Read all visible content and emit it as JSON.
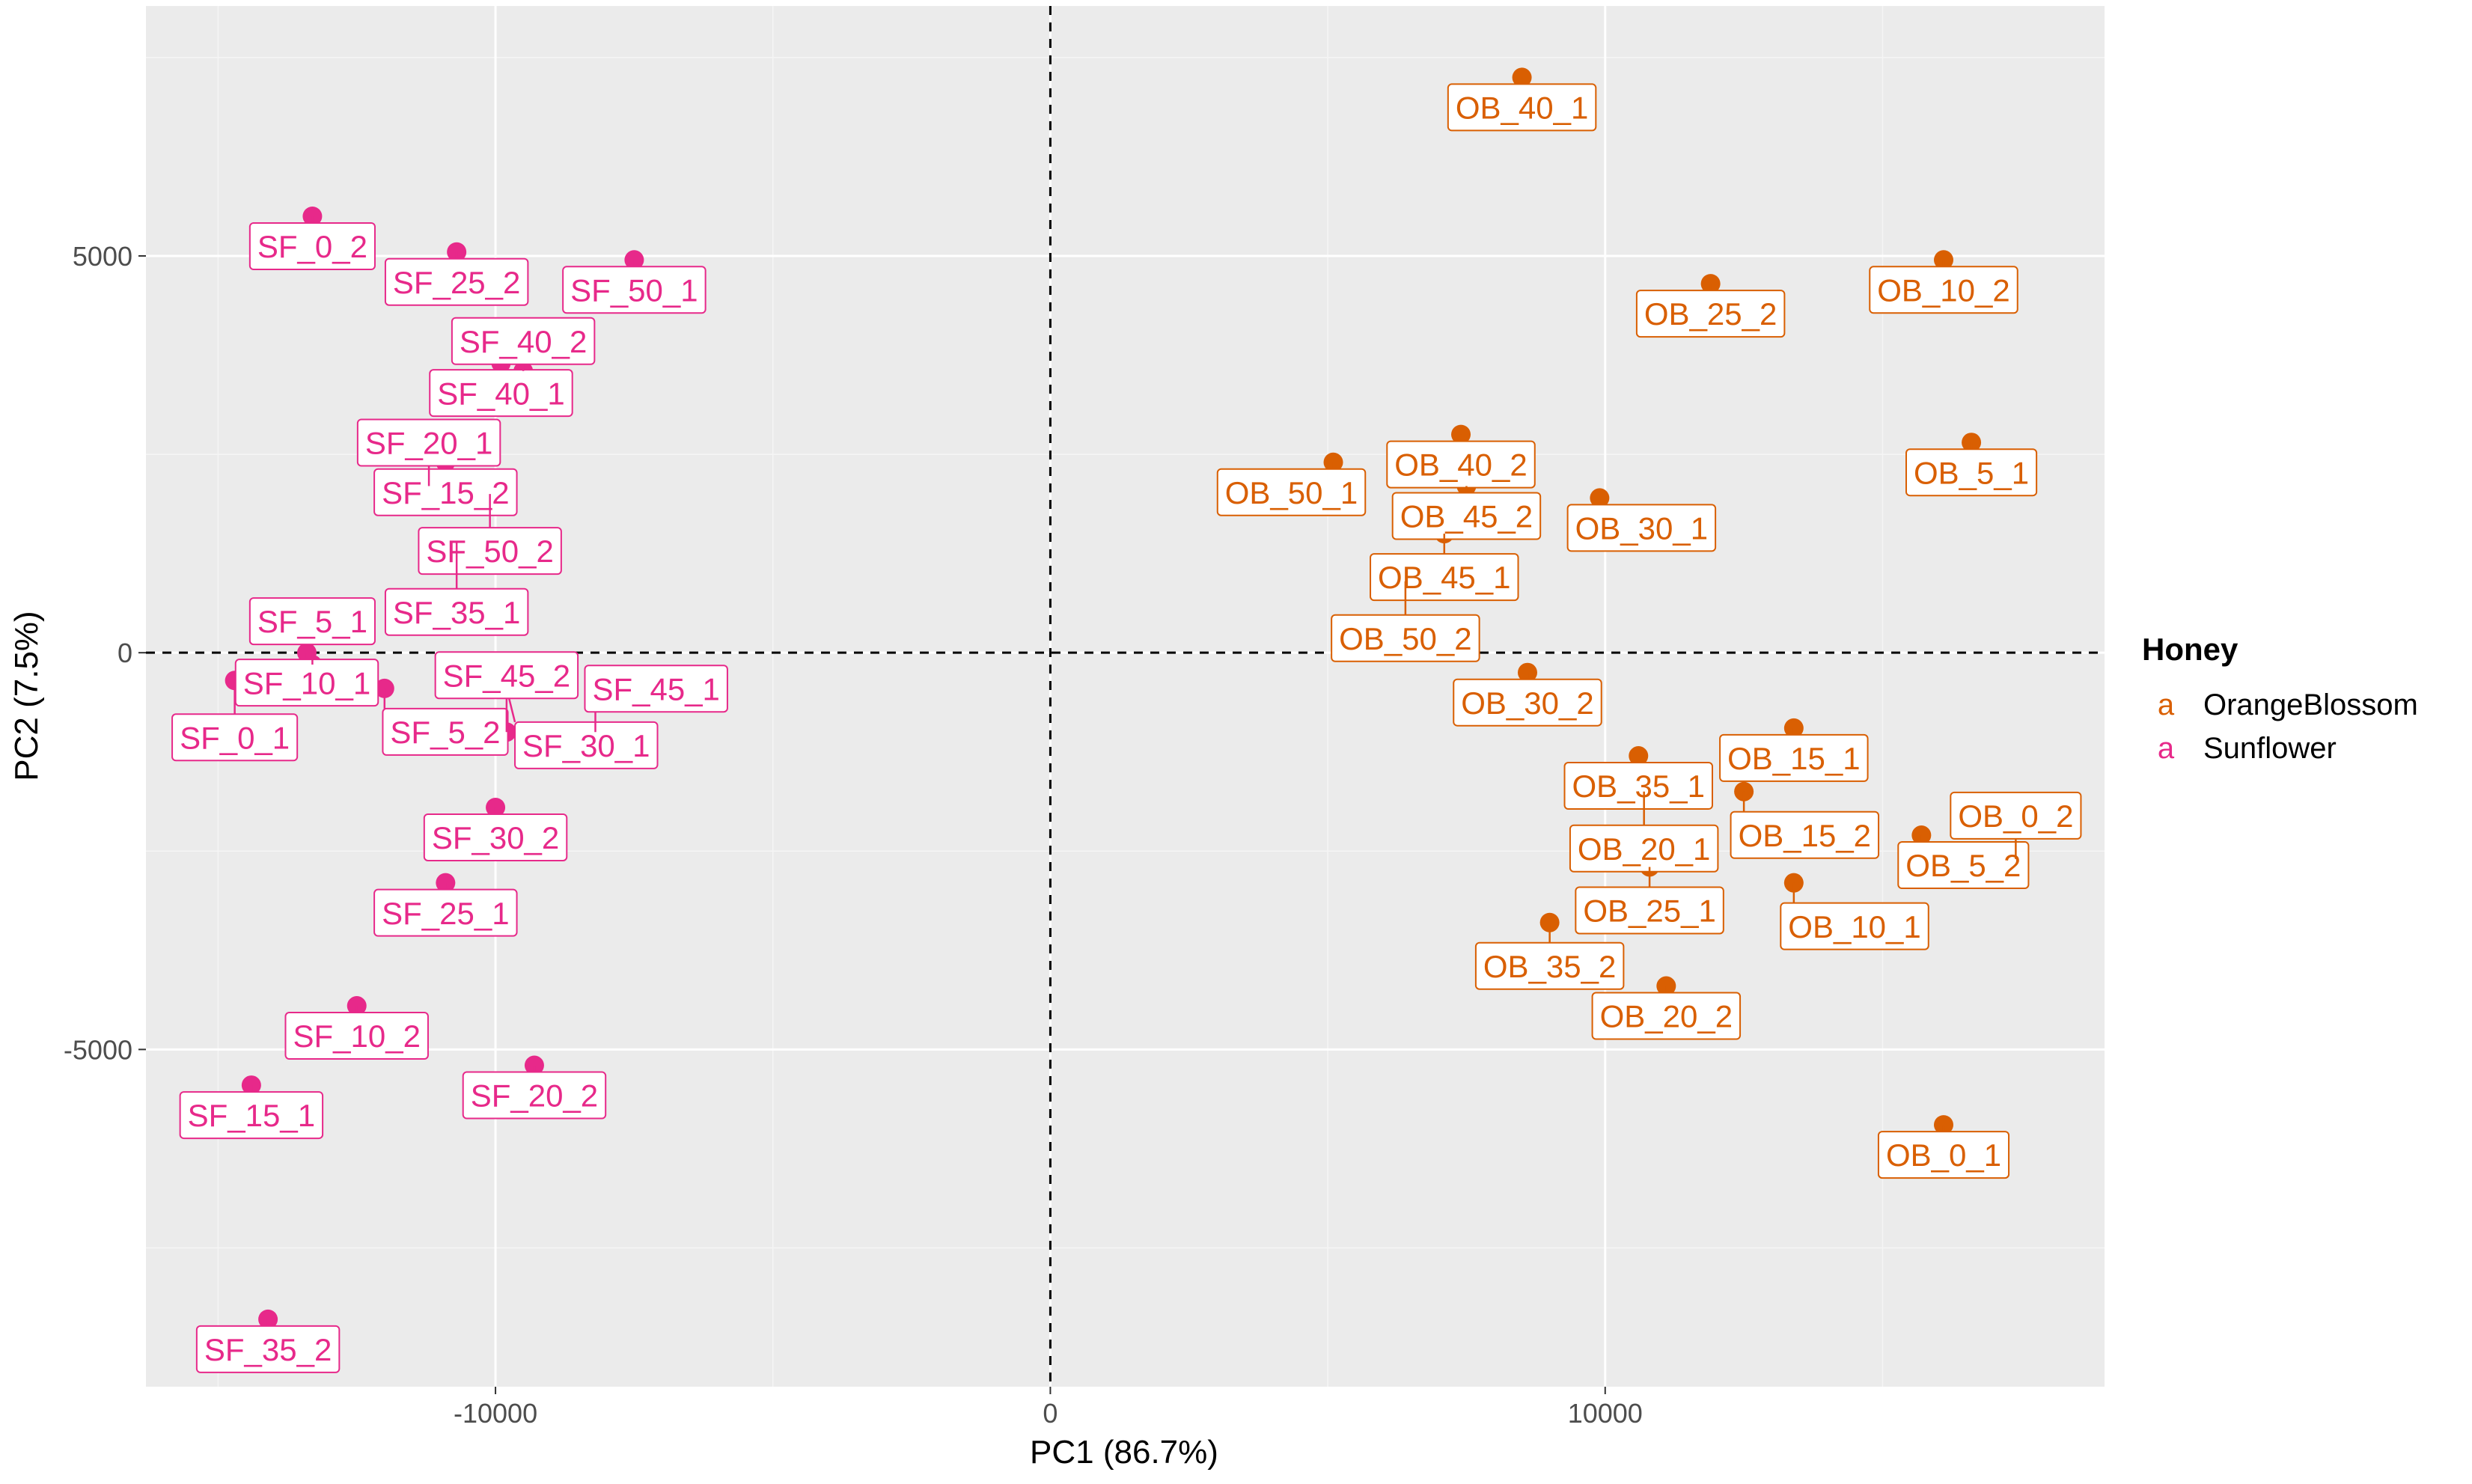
{
  "chart_data": {
    "type": "scatter",
    "title": "",
    "xlabel": "PC1 (86.7%)",
    "ylabel": "PC2 (7.5%)",
    "xlim": [
      -16300,
      19000
    ],
    "ylim": [
      -9250,
      8150
    ],
    "xticks": [
      -10000,
      0,
      10000
    ],
    "yticks": [
      -5000,
      0,
      5000
    ],
    "xtick_labels": [
      "-10000",
      "0",
      "10000"
    ],
    "ytick_labels": [
      "-5000",
      "0",
      "5000"
    ],
    "xminor": [
      -15000,
      -5000,
      5000,
      15000
    ],
    "yminor": [
      -7500,
      -2500,
      2500,
      7500
    ],
    "grid": true,
    "reference_lines": {
      "x": 0,
      "y": 0,
      "style": "dashed"
    },
    "legend": {
      "title": "Honey",
      "position": "right",
      "key_glyph": "a",
      "entries": [
        {
          "name": "OrangeBlossom",
          "color": "#d95f02"
        },
        {
          "name": "Sunflower",
          "color": "#e7298a"
        }
      ]
    },
    "series": [
      {
        "name": "OrangeBlossom",
        "color": "#d95f02",
        "points": [
          {
            "label": "OB_40_1",
            "x": 8500,
            "y": 7250
          },
          {
            "label": "OB_10_2",
            "x": 16100,
            "y": 4950
          },
          {
            "label": "OB_25_2",
            "x": 11900,
            "y": 4650
          },
          {
            "label": "OB_40_2",
            "x": 7400,
            "y": 2750
          },
          {
            "label": "OB_5_1",
            "x": 16600,
            "y": 2650
          },
          {
            "label": "OB_50_1",
            "x": 5100,
            "y": 2400
          },
          {
            "label": "OB_45_2",
            "x": 7500,
            "y": 2100
          },
          {
            "label": "OB_30_1",
            "x": 9900,
            "y": 1950
          },
          {
            "label": "OB_45_1",
            "x": 7100,
            "y": 1500
          },
          {
            "label": "OB_50_2",
            "x": 6400,
            "y": 900
          },
          {
            "label": "OB_30_2",
            "x": 8600,
            "y": -250
          },
          {
            "label": "OB_15_1",
            "x": 13400,
            "y": -950
          },
          {
            "label": "OB_35_1",
            "x": 10600,
            "y": -1300
          },
          {
            "label": "OB_15_2",
            "x": 12500,
            "y": -1750
          },
          {
            "label": "OB_20_1",
            "x": 10700,
            "y": -1750
          },
          {
            "label": "OB_5_2",
            "x": 15700,
            "y": -2300
          },
          {
            "label": "OB_0_2",
            "x": 17400,
            "y": -2600
          },
          {
            "label": "OB_25_1",
            "x": 10800,
            "y": -2700
          },
          {
            "label": "OB_10_1",
            "x": 13400,
            "y": -2900
          },
          {
            "label": "OB_35_2",
            "x": 9000,
            "y": -3400
          },
          {
            "label": "OB_20_2",
            "x": 11100,
            "y": -4200
          },
          {
            "label": "OB_0_1",
            "x": 16100,
            "y": -5950
          }
        ]
      },
      {
        "name": "Sunflower",
        "color": "#e7298a",
        "points": [
          {
            "label": "SF_0_2",
            "x": -13300,
            "y": 5500
          },
          {
            "label": "SF_25_2",
            "x": -10700,
            "y": 5050
          },
          {
            "label": "SF_50_1",
            "x": -7500,
            "y": 4950
          },
          {
            "label": "SF_40_1",
            "x": -9900,
            "y": 3650
          },
          {
            "label": "SF_40_2",
            "x": -9500,
            "y": 3550
          },
          {
            "label": "SF_15_2",
            "x": -10900,
            "y": 2400
          },
          {
            "label": "SF_20_1",
            "x": -11200,
            "y": 2100
          },
          {
            "label": "SF_50_2",
            "x": -10100,
            "y": 2000
          },
          {
            "label": "SF_35_1",
            "x": -10700,
            "y": 1400
          },
          {
            "label": "SF_10_1",
            "x": -13400,
            "y": 0
          },
          {
            "label": "SF_5_1",
            "x": -13300,
            "y": -150
          },
          {
            "label": "SF_0_1",
            "x": -14700,
            "y": -350
          },
          {
            "label": "SF_5_2",
            "x": -12000,
            "y": -450
          },
          {
            "label": "SF_30_1",
            "x": -9800,
            "y": -450
          },
          {
            "label": "SF_45_2",
            "x": -9800,
            "y": -1000
          },
          {
            "label": "SF_45_1",
            "x": -8200,
            "y": -1000
          },
          {
            "label": "SF_30_2",
            "x": -10000,
            "y": -1950
          },
          {
            "label": "SF_25_1",
            "x": -10900,
            "y": -2900
          },
          {
            "label": "SF_10_2",
            "x": -12500,
            "y": -4450
          },
          {
            "label": "SF_20_2",
            "x": -9300,
            "y": -5200
          },
          {
            "label": "SF_15_1",
            "x": -14400,
            "y": -5450
          },
          {
            "label": "SF_35_2",
            "x": -14100,
            "y": -8400
          }
        ]
      }
    ]
  }
}
